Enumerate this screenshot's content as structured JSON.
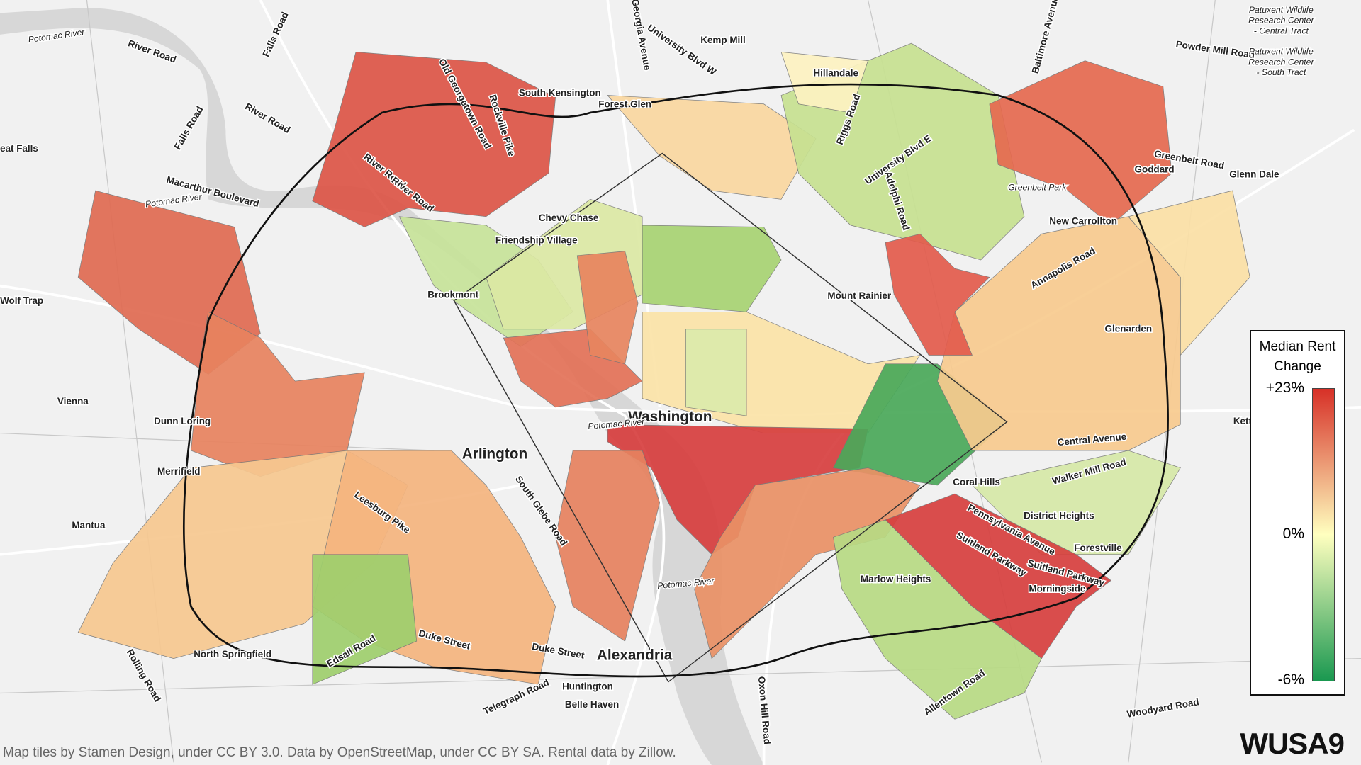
{
  "map": {
    "labels": [
      "Potomac River",
      "River Road",
      "Falls Road",
      "River Road",
      "Falls Road",
      "eat Falls",
      "Macarthur Boulevard",
      "Potomac River",
      "Wolf Trap",
      "Vienna",
      "Dunn Loring",
      "Merrifield",
      "Mantua",
      "Old Georgetown Road",
      "Rockville Pike",
      "River Road",
      "River Road",
      "Kemp Mill",
      "University Blvd W",
      "Georgia Avenue",
      "South Kensington",
      "Forest Glen",
      "Hillandale",
      "Riggs Road",
      "University Blvd E",
      "Adelphi Road",
      "Greenbelt Park",
      "Goddard",
      "Glenn Dale",
      "Greenbelt Road",
      "New Carrollton",
      "Annapolis Road",
      "Glenarden",
      "Powder Mill Road",
      "Baltimore Avenue",
      "Chevy Chase",
      "Friendship Village",
      "Brookmont",
      "Mount Rainier",
      "Washington",
      "Arlington",
      "Potomac River",
      "Central Avenue",
      "Kettering",
      "Walker Mill Road",
      "Coral Hills",
      "District Heights",
      "Pennsylvania Avenue",
      "Forestville",
      "Suitland Parkway",
      "Suitland Parkway",
      "Morningside",
      "Marlow Heights",
      "Leesburg Pike",
      "South Glebe Road",
      "Potomac River",
      "Duke Street",
      "Duke Street",
      "Alexandria",
      "Edsall Road",
      "North Springfield",
      "Huntington",
      "Belle Haven",
      "Telegraph Road",
      "Allentown Road",
      "Woodyard Road",
      "Oxon Hill Road",
      "Rolling Road",
      "Patuxent Wildlife",
      "Research Center",
      "- Central Tract",
      "Patuxent Wildlife",
      "Research Center",
      "- South Tract"
    ]
  },
  "legend": {
    "title": "Median Rent Change",
    "range": [
      -6,
      23
    ],
    "ticks": [
      {
        "value": 23,
        "label": "+23%"
      },
      {
        "value": 0,
        "label": "0%"
      },
      {
        "value": -6,
        "label": "-6%"
      }
    ],
    "colors": [
      "#1a9850",
      "#ffffbf",
      "#d73027"
    ]
  },
  "attribution": "Map tiles by Stamen Design, under CC BY 3.0. Data by OpenStreetMap, under CC BY SA. Rental data by Zillow.",
  "logo": "WUSA9"
}
